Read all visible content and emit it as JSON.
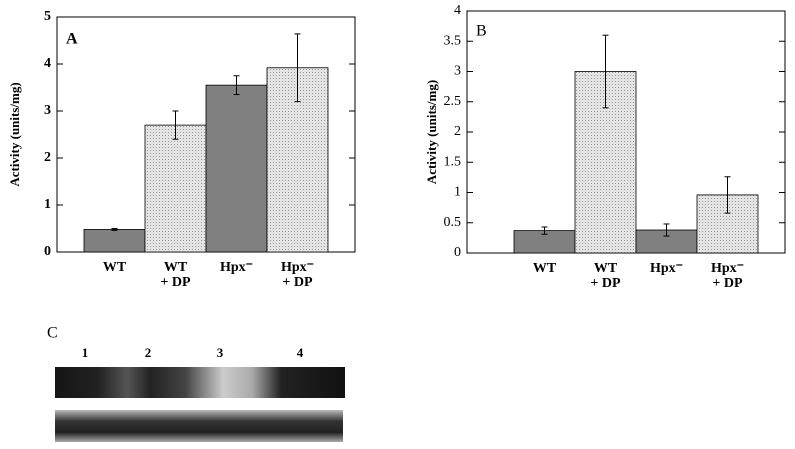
{
  "chart_data": [
    {
      "type": "bar",
      "panel_label": "A",
      "y_label": "Activity (units/mg)",
      "categories": [
        "WT",
        "WT\n+ DP",
        "Hpx⁻",
        "Hpx⁻\n+ DP"
      ],
      "values": [
        0.48,
        2.7,
        3.55,
        3.92
      ],
      "errors": [
        0.02,
        0.3,
        0.2,
        0.72
      ],
      "colors": [
        "#808080",
        "#d9d9d9",
        "#808080",
        "#d9d9d9"
      ],
      "ylim": [
        0,
        5
      ],
      "yticks": [
        0,
        1,
        2,
        3,
        4,
        5
      ]
    },
    {
      "type": "bar",
      "panel_label": "B",
      "y_label": "Activity (units/mg)",
      "categories": [
        "WT",
        "WT\n+ DP",
        "Hpx⁻",
        "Hpx⁻\n+ DP"
      ],
      "values": [
        0.37,
        3.0,
        0.38,
        0.96
      ],
      "errors": [
        0.06,
        0.6,
        0.1,
        0.3
      ],
      "colors": [
        "#808080",
        "#d9d9d9",
        "#808080",
        "#d9d9d9"
      ],
      "ylim": [
        0,
        4
      ],
      "yticks": [
        0,
        0.5,
        1,
        1.5,
        2,
        2.5,
        3,
        3.5,
        4
      ]
    }
  ],
  "panel_c": {
    "label": "C",
    "lanes": [
      "1",
      "2",
      "3",
      "4"
    ]
  }
}
